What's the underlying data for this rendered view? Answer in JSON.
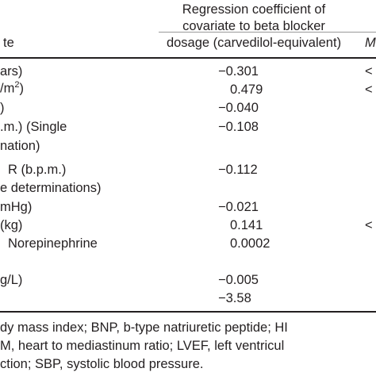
{
  "header": {
    "regression_line1": "Regression coefficient of",
    "regression_line2": "covariate to beta blocker",
    "regression_line3": "dosage (carvedilol-equivalent)",
    "covariate_col_fragment": "te",
    "right_col_fragment": "M"
  },
  "rows": [
    {
      "label": "ars)",
      "coef": "−0.301",
      "extra": "<"
    },
    {
      "label": "/m²)",
      "coef": "0.479",
      "extra": "<"
    },
    {
      "label": ")",
      "coef": "−0.040",
      "extra": ""
    },
    {
      "label": ".m.) (Single",
      "coef": "−0.108",
      "extra": ""
    },
    {
      "label": "nation)",
      "coef": "",
      "extra": ""
    },
    {
      "label": "R (b.p.m.)",
      "coef": "−0.112",
      "extra": ""
    },
    {
      "label": "e determinations)",
      "coef": "",
      "extra": ""
    },
    {
      "label": "mHg)",
      "coef": "−0.021",
      "extra": ""
    },
    {
      "label": "(kg)",
      "coef": "0.141",
      "extra": "<"
    },
    {
      "label": "Norepinephrine",
      "coef": "0.0002",
      "extra": ""
    },
    {
      "label": "",
      "coef": "",
      "extra": ""
    },
    {
      "label": "g/L)",
      "coef": "−0.005",
      "extra": ""
    },
    {
      "label": "",
      "coef": "−3.58",
      "extra": ""
    }
  ],
  "footnote": {
    "line1": "dy mass index; BNP, b-type natriuretic peptide; HI",
    "line2": "M, heart to mediastinum ratio; LVEF, left ventricul",
    "line3": "ction; SBP, systolic blood pressure."
  }
}
